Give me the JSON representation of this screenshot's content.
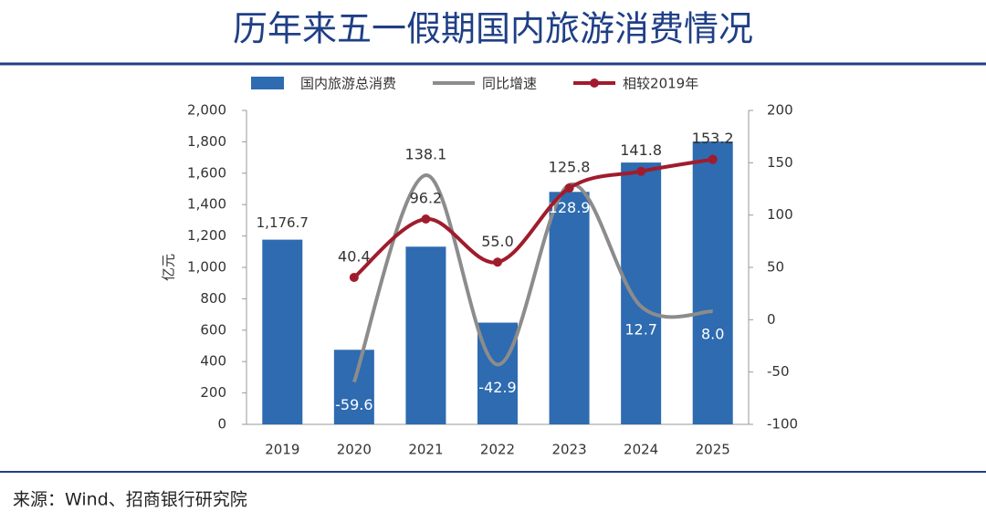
{
  "chart_data": {
    "type": "bar-line",
    "title": "历年来五一假期国内旅游消费情况",
    "source": "来源：Wind、招商银行研究院",
    "y_label": "亿元",
    "categories": [
      "2019",
      "2020",
      "2021",
      "2022",
      "2023",
      "2024",
      "2025"
    ],
    "series": [
      {
        "name": "国内旅游总消费",
        "type": "bar",
        "color": "#2e6bb0",
        "axis": "y",
        "values": [
          1176.7,
          475,
          1132,
          648,
          1481,
          1668,
          1802
        ],
        "value_labels": [
          "1,176.7",
          null,
          null,
          null,
          null,
          null,
          null
        ]
      },
      {
        "name": "同比增速",
        "type": "line",
        "color": "#8c8c8c",
        "axis": "y2",
        "values": [
          null,
          -59.6,
          138.1,
          -42.9,
          128.9,
          12.7,
          8.0
        ],
        "value_labels": [
          null,
          "-59.6",
          "138.1",
          "-42.9",
          "128.9",
          "12.7",
          "8.0"
        ]
      },
      {
        "name": "相较2019年",
        "type": "line",
        "color": "#a01c2c",
        "axis": "y2",
        "markers": true,
        "values": [
          null,
          40.4,
          96.2,
          55.0,
          125.8,
          141.8,
          153.2
        ],
        "value_labels": [
          null,
          "40.4",
          "96.2",
          "55.0",
          "125.8",
          "141.8",
          "153.2"
        ]
      }
    ],
    "ylim": [
      0,
      2000
    ],
    "yticks": [
      0,
      200,
      400,
      600,
      800,
      {
        "value": 1000,
        "label": "1,000"
      },
      {
        "value": 1200,
        "label": "1,200"
      },
      {
        "value": 1400,
        "label": "1,400"
      },
      {
        "value": 1600,
        "label": "1,600"
      },
      {
        "value": 1800,
        "label": "1,800"
      },
      {
        "value": 2000,
        "label": "2,000"
      }
    ],
    "y2lim": [
      -100,
      200
    ],
    "y2ticks": [
      -100,
      -50,
      0,
      50,
      100,
      150,
      200
    ],
    "grid": false
  }
}
